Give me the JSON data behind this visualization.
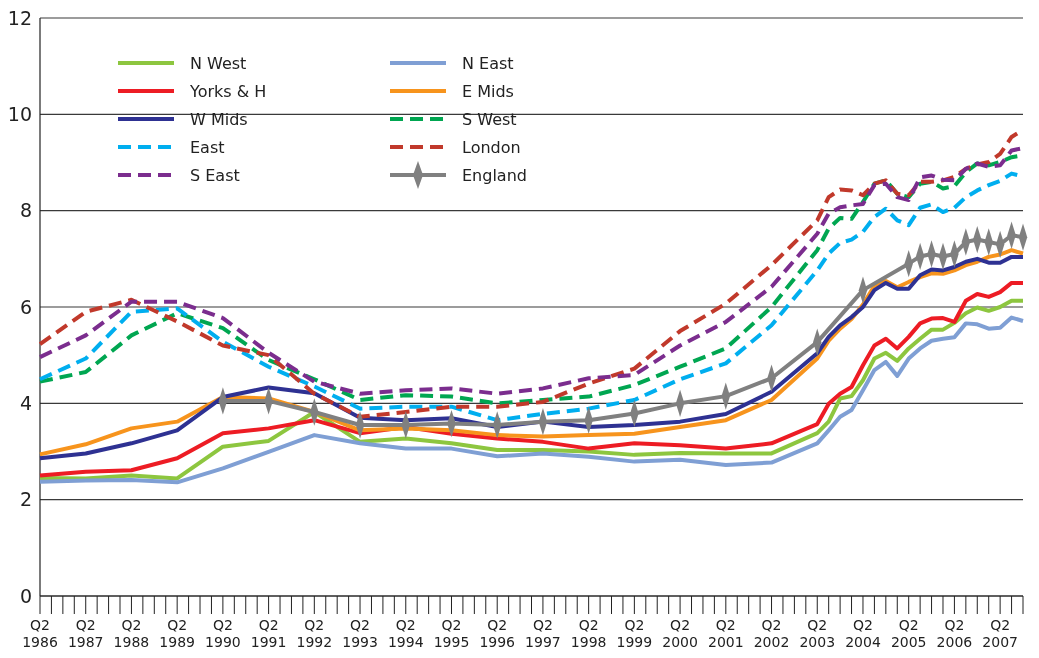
{
  "chart_data": {
    "type": "line",
    "categories": [
      "Q2 1986",
      null,
      null,
      null,
      "Q2 1987",
      null,
      null,
      null,
      "Q2 1988",
      null,
      null,
      null,
      "Q2 1989",
      null,
      null,
      null,
      "Q2 1990",
      null,
      null,
      null,
      "Q2 1991",
      null,
      null,
      null,
      "Q2 1992",
      null,
      null,
      null,
      "Q2 1993",
      null,
      null,
      null,
      "Q2 1994",
      null,
      null,
      null,
      "Q2 1995",
      null,
      null,
      null,
      "Q2 1996",
      null,
      null,
      null,
      "Q2 1997",
      null,
      null,
      null,
      "Q2 1998",
      null,
      null,
      null,
      "Q2 1999",
      null,
      null,
      null,
      "Q2 2000",
      null,
      null,
      null,
      "Q2 2001",
      null,
      null,
      null,
      "Q2 2002",
      null,
      null,
      null,
      "Q2 2003",
      null,
      null,
      null,
      "Q2 2004",
      null,
      null,
      null,
      "Q2 2005",
      null,
      null,
      null,
      "Q2 2006",
      null,
      null,
      null,
      "Q2 2007",
      null,
      null
    ],
    "ylim": [
      0,
      12
    ],
    "yticks": [
      0,
      2,
      4,
      6,
      8,
      10,
      12
    ],
    "grid": "y",
    "legend": "top left",
    "series": [
      {
        "name": "N West",
        "color": "#8dc63f",
        "values": [
          2.45,
          null,
          null,
          null,
          2.44,
          null,
          null,
          null,
          2.5,
          null,
          null,
          null,
          2.44,
          null,
          null,
          null,
          3.1,
          null,
          null,
          null,
          3.22,
          null,
          null,
          null,
          3.82,
          null,
          null,
          null,
          3.2,
          null,
          null,
          null,
          3.27,
          null,
          null,
          null,
          3.17,
          null,
          null,
          null,
          3.03,
          null,
          null,
          null,
          3.03,
          null,
          null,
          null,
          3.0,
          null,
          null,
          null,
          2.93,
          null,
          null,
          null,
          2.97,
          null,
          null,
          null,
          2.96,
          null,
          null,
          null,
          2.96,
          null,
          null,
          null,
          3.38,
          3.62,
          4.1,
          4.15,
          4.48,
          4.93,
          5.05,
          4.88,
          5.14,
          5.34,
          5.53,
          5.53,
          5.67,
          5.87,
          5.99,
          5.92,
          6.0,
          6.13,
          6.13
        ]
      },
      {
        "name": "N East",
        "color": "#7f9fd4",
        "values": [
          2.37,
          null,
          null,
          null,
          2.4,
          null,
          null,
          null,
          2.41,
          null,
          null,
          null,
          2.36,
          null,
          null,
          null,
          2.65,
          null,
          null,
          null,
          2.99,
          null,
          null,
          null,
          3.34,
          null,
          null,
          null,
          3.17,
          null,
          null,
          null,
          3.06,
          null,
          null,
          null,
          3.06,
          null,
          null,
          null,
          2.9,
          null,
          null,
          null,
          2.96,
          null,
          null,
          null,
          2.89,
          null,
          null,
          null,
          2.79,
          null,
          null,
          null,
          2.83,
          null,
          null,
          null,
          2.72,
          null,
          null,
          null,
          2.77,
          null,
          null,
          null,
          3.17,
          3.44,
          3.72,
          3.86,
          4.27,
          4.69,
          4.86,
          4.57,
          4.93,
          5.14,
          5.3,
          5.34,
          5.37,
          5.66,
          5.64,
          5.55,
          5.57,
          5.78,
          5.71
        ]
      },
      {
        "name": "Yorks & H",
        "color": "#ed1c24",
        "values": [
          2.5,
          null,
          null,
          null,
          2.58,
          null,
          null,
          null,
          2.61,
          null,
          null,
          null,
          2.86,
          null,
          null,
          null,
          3.38,
          null,
          null,
          null,
          3.48,
          null,
          null,
          null,
          3.65,
          null,
          null,
          null,
          3.38,
          null,
          null,
          null,
          3.51,
          null,
          null,
          null,
          3.37,
          null,
          null,
          null,
          3.27,
          null,
          null,
          null,
          3.2,
          null,
          null,
          null,
          3.06,
          null,
          null,
          null,
          3.17,
          null,
          null,
          null,
          3.13,
          null,
          null,
          null,
          3.06,
          null,
          null,
          null,
          3.17,
          null,
          null,
          null,
          3.57,
          3.99,
          4.2,
          4.34,
          4.79,
          5.2,
          5.34,
          5.14,
          5.38,
          5.66,
          5.76,
          5.77,
          5.69,
          6.13,
          6.27,
          6.21,
          6.31,
          6.5,
          6.5
        ]
      },
      {
        "name": "E Mids",
        "color": "#f7941d",
        "values": [
          2.94,
          null,
          null,
          null,
          3.15,
          null,
          null,
          null,
          3.48,
          null,
          null,
          null,
          3.62,
          null,
          null,
          null,
          4.13,
          null,
          null,
          null,
          4.1,
          null,
          null,
          null,
          3.82,
          null,
          null,
          null,
          3.44,
          null,
          null,
          null,
          3.48,
          null,
          null,
          null,
          3.44,
          null,
          null,
          null,
          3.34,
          null,
          null,
          null,
          3.31,
          null,
          null,
          null,
          3.34,
          null,
          null,
          null,
          3.37,
          null,
          null,
          null,
          3.51,
          null,
          null,
          null,
          3.65,
          null,
          null,
          null,
          4.07,
          null,
          null,
          null,
          4.93,
          5.3,
          5.55,
          5.75,
          6.05,
          6.44,
          6.54,
          6.41,
          6.52,
          6.62,
          6.7,
          6.69,
          6.76,
          6.87,
          6.94,
          7.04,
          7.09,
          7.18,
          7.11
        ]
      },
      {
        "name": "W Mids",
        "color": "#2e3192",
        "values": [
          2.86,
          null,
          null,
          null,
          2.96,
          null,
          null,
          null,
          3.17,
          null,
          null,
          null,
          3.44,
          null,
          null,
          null,
          4.13,
          null,
          null,
          null,
          4.33,
          null,
          null,
          null,
          4.21,
          null,
          null,
          null,
          3.7,
          null,
          null,
          null,
          3.65,
          null,
          null,
          null,
          3.69,
          null,
          null,
          null,
          3.51,
          null,
          null,
          null,
          3.62,
          null,
          null,
          null,
          3.51,
          null,
          null,
          null,
          3.55,
          null,
          null,
          null,
          3.62,
          null,
          null,
          null,
          3.78,
          null,
          null,
          null,
          4.24,
          null,
          null,
          null,
          5.04,
          5.38,
          5.62,
          5.79,
          6.0,
          6.35,
          6.5,
          6.38,
          6.38,
          6.66,
          6.78,
          6.76,
          6.83,
          6.94,
          7.0,
          6.92,
          6.92,
          7.04,
          7.04
        ]
      },
      {
        "name": "S West",
        "color": "#00a651",
        "line_style": "dashed",
        "values": [
          4.45,
          null,
          null,
          null,
          4.65,
          null,
          null,
          null,
          5.41,
          null,
          null,
          null,
          5.87,
          null,
          null,
          null,
          5.56,
          null,
          null,
          null,
          4.9,
          null,
          null,
          null,
          4.5,
          null,
          null,
          null,
          4.07,
          null,
          null,
          null,
          4.17,
          null,
          null,
          null,
          4.14,
          null,
          null,
          null,
          4.0,
          null,
          null,
          null,
          4.07,
          null,
          null,
          null,
          4.14,
          null,
          null,
          null,
          4.38,
          null,
          null,
          null,
          4.76,
          null,
          null,
          null,
          5.14,
          null,
          null,
          null,
          6.0,
          null,
          null,
          null,
          7.18,
          7.63,
          7.85,
          7.83,
          8.18,
          8.56,
          8.63,
          8.35,
          8.28,
          8.56,
          8.6,
          8.46,
          8.51,
          8.8,
          8.98,
          8.94,
          9.01,
          9.11,
          9.15
        ]
      },
      {
        "name": "East",
        "color": "#00aeef",
        "line_style": "dashed",
        "values": [
          4.5,
          null,
          null,
          null,
          4.93,
          null,
          null,
          null,
          5.9,
          null,
          null,
          null,
          5.97,
          null,
          null,
          null,
          5.28,
          null,
          null,
          null,
          4.76,
          null,
          null,
          null,
          4.35,
          null,
          null,
          null,
          3.89,
          null,
          null,
          null,
          3.93,
          null,
          null,
          null,
          3.93,
          null,
          null,
          null,
          3.65,
          null,
          null,
          null,
          3.78,
          null,
          null,
          null,
          3.89,
          null,
          null,
          null,
          4.07,
          null,
          null,
          null,
          4.5,
          null,
          null,
          null,
          4.83,
          null,
          null,
          null,
          5.62,
          null,
          null,
          null,
          6.76,
          7.11,
          7.33,
          7.4,
          7.56,
          7.87,
          8.04,
          7.8,
          7.7,
          8.06,
          8.13,
          7.97,
          8.06,
          8.28,
          8.42,
          8.53,
          8.62,
          8.77,
          8.71
        ]
      },
      {
        "name": "London",
        "color": "#c1392b",
        "line_style": "dashed",
        "values": [
          5.23,
          null,
          null,
          null,
          5.9,
          null,
          null,
          null,
          6.15,
          null,
          null,
          null,
          5.7,
          null,
          null,
          null,
          5.2,
          null,
          null,
          null,
          5.0,
          null,
          null,
          null,
          4.2,
          null,
          null,
          null,
          3.72,
          null,
          null,
          null,
          3.82,
          null,
          null,
          null,
          3.93,
          null,
          null,
          null,
          3.93,
          null,
          null,
          null,
          4.03,
          null,
          null,
          null,
          4.41,
          null,
          null,
          null,
          4.72,
          null,
          null,
          null,
          5.5,
          null,
          null,
          null,
          6.07,
          null,
          null,
          null,
          6.87,
          null,
          null,
          null,
          7.8,
          8.28,
          8.44,
          8.42,
          8.32,
          8.56,
          8.63,
          8.35,
          8.32,
          8.6,
          8.6,
          8.63,
          8.7,
          8.87,
          8.96,
          9.01,
          9.18,
          9.53,
          9.68
        ]
      },
      {
        "name": "S East",
        "color": "#7b2d8e",
        "line_style": "dashed",
        "values": [
          4.96,
          null,
          null,
          null,
          5.41,
          null,
          null,
          null,
          6.11,
          null,
          null,
          null,
          6.11,
          null,
          null,
          null,
          5.77,
          null,
          null,
          null,
          5.05,
          null,
          null,
          null,
          4.45,
          null,
          null,
          null,
          4.2,
          null,
          null,
          null,
          4.27,
          null,
          null,
          null,
          4.31,
          null,
          null,
          null,
          4.2,
          null,
          null,
          null,
          4.31,
          null,
          null,
          null,
          4.52,
          null,
          null,
          null,
          4.59,
          null,
          null,
          null,
          5.2,
          null,
          null,
          null,
          5.69,
          null,
          null,
          null,
          6.42,
          null,
          null,
          null,
          7.52,
          7.94,
          8.07,
          8.11,
          8.14,
          8.53,
          8.56,
          8.28,
          8.22,
          8.69,
          8.73,
          8.64,
          8.63,
          8.87,
          8.98,
          8.91,
          8.94,
          9.25,
          9.3
        ]
      },
      {
        "name": "England",
        "color": "#808080",
        "marker": "diamond",
        "values": [
          null,
          null,
          null,
          null,
          null,
          null,
          null,
          null,
          null,
          null,
          null,
          null,
          null,
          null,
          null,
          null,
          4.05,
          null,
          null,
          null,
          4.05,
          null,
          null,
          null,
          3.82,
          null,
          null,
          null,
          3.55,
          null,
          null,
          null,
          3.55,
          null,
          null,
          null,
          3.58,
          null,
          null,
          null,
          3.55,
          null,
          null,
          null,
          3.62,
          null,
          null,
          null,
          3.65,
          null,
          null,
          null,
          3.79,
          null,
          null,
          null,
          4.0,
          null,
          null,
          null,
          4.15,
          null,
          null,
          null,
          4.52,
          null,
          null,
          null,
          5.27,
          null,
          null,
          null,
          6.35,
          null,
          null,
          null,
          6.9,
          7.05,
          7.1,
          7.05,
          7.1,
          7.35,
          7.4,
          7.35,
          7.3,
          7.49,
          7.45
        ]
      }
    ]
  }
}
